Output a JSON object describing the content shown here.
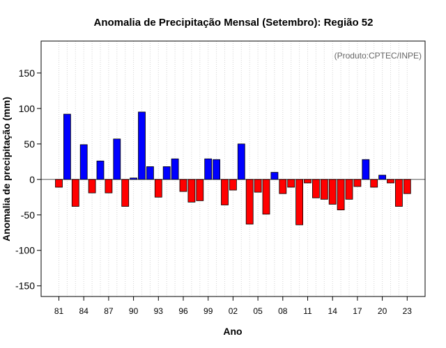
{
  "chart_data": {
    "type": "bar",
    "title": "Anomalia de Precipitação Mensal (Setembro): Região 52",
    "xlabel": "Ano",
    "ylabel": "Anomalia de precipitação (mm)",
    "annotation": "(Produto:CPTEC/INPE)",
    "ylim": [
      -165,
      195
    ],
    "yticks": [
      -150,
      -100,
      -50,
      0,
      50,
      100,
      150
    ],
    "x_tick_labels": [
      "81",
      "84",
      "87",
      "90",
      "93",
      "96",
      "99",
      "02",
      "05",
      "08",
      "11",
      "14",
      "17",
      "20",
      "23"
    ],
    "categories": [
      "1981",
      "1982",
      "1983",
      "1984",
      "1985",
      "1986",
      "1987",
      "1988",
      "1989",
      "1990",
      "1991",
      "1992",
      "1993",
      "1994",
      "1995",
      "1996",
      "1997",
      "1998",
      "1999",
      "2000",
      "2001",
      "2002",
      "2003",
      "2004",
      "2005",
      "2006",
      "2007",
      "2008",
      "2009",
      "2010",
      "2011",
      "2012",
      "2013",
      "2014",
      "2015",
      "2016",
      "2017",
      "2018",
      "2019",
      "2020",
      "2021",
      "2022",
      "2023"
    ],
    "values": [
      -11,
      92,
      -38,
      49,
      -19,
      26,
      -19,
      57,
      -38,
      2,
      95,
      18,
      -25,
      18,
      29,
      -17,
      -32,
      -30,
      29,
      28,
      -36,
      -15,
      50,
      -63,
      -18,
      -49,
      10,
      -20,
      -11,
      -64,
      -5,
      -26,
      -28,
      -35,
      -43,
      -28,
      -10,
      28,
      -11,
      6,
      -5,
      -38,
      -20
    ],
    "positive_color": "#0000ff",
    "negative_color": "#ff0000",
    "grid": "vertical dotted"
  }
}
